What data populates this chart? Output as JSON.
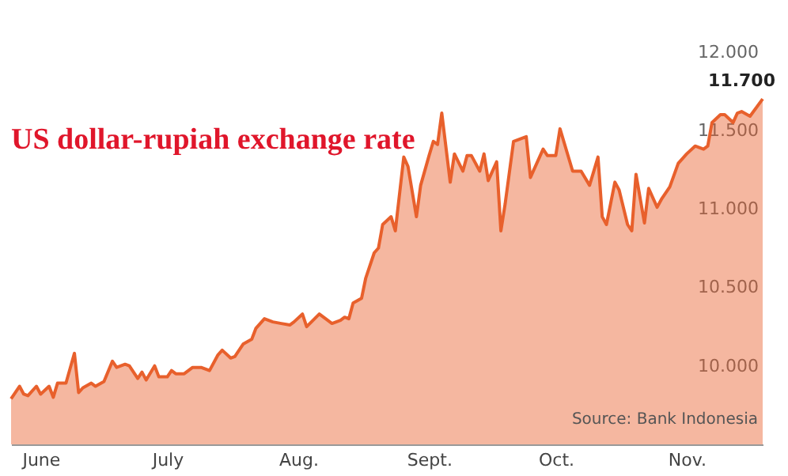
{
  "chart_data": {
    "type": "area",
    "title": "US dollar-rupiah exchange rate",
    "x": [
      "--05-25",
      "--05-27",
      "--05-28",
      "--05-29",
      "--05-31",
      "--06-01",
      "--06-03",
      "--06-04",
      "--06-05",
      "--06-07",
      "--06-09",
      "--06-10",
      "--06-11",
      "--06-13",
      "--06-14",
      "--06-16",
      "--06-18",
      "--06-19",
      "--06-21",
      "--06-22",
      "--06-24",
      "--06-25",
      "--06-26",
      "--06-28",
      "--06-29",
      "--07-01",
      "--07-02",
      "--07-03",
      "--07-05",
      "--07-07",
      "--07-09",
      "--07-11",
      "--07-13",
      "--07-14",
      "--07-16",
      "--07-17",
      "--07-19",
      "--07-21",
      "--07-22",
      "--07-24",
      "--07-26",
      "--07-28",
      "--07-30",
      "--07-31",
      "--08-02",
      "--08-03",
      "--08-06",
      "--08-07",
      "--08-09",
      "--08-11",
      "--08-12",
      "--08-13",
      "--08-14",
      "--08-16",
      "--08-17",
      "--08-19",
      "--08-20",
      "--08-21",
      "--08-23",
      "--08-24",
      "--08-26",
      "--08-27",
      "--08-29",
      "--08-30",
      "--09-01",
      "--09-02",
      "--09-03",
      "--09-04",
      "--09-06",
      "--09-07",
      "--09-09",
      "--09-10",
      "--09-11",
      "--09-13",
      "--09-14",
      "--09-15",
      "--09-17",
      "--09-18",
      "--09-19",
      "--09-21",
      "--09-24",
      "--09-25",
      "--09-28",
      "--09-29",
      "--10-01",
      "--10-02",
      "--10-05",
      "--10-07",
      "--10-09",
      "--10-11",
      "--10-12",
      "--10-13",
      "--10-15",
      "--10-16",
      "--10-18",
      "--10-19",
      "--10-20",
      "--10-22",
      "--10-23",
      "--10-25",
      "--10-26",
      "--10-28",
      "--10-30",
      "--11-01",
      "--11-03",
      "--11-05",
      "--11-06",
      "--11-07",
      "--11-09",
      "--11-10",
      "--11-12",
      "--11-13",
      "--11-14",
      "--11-16",
      "--11-19"
    ],
    "series": [
      {
        "color": "#e8602c",
        "values": [
          9790,
          9870,
          9820,
          9810,
          9870,
          9820,
          9870,
          9800,
          9890,
          9890,
          10080,
          9830,
          9860,
          9890,
          9870,
          9900,
          10030,
          9990,
          10010,
          10000,
          9920,
          9960,
          9910,
          10000,
          9930,
          9930,
          9970,
          9950,
          9950,
          9990,
          9990,
          9970,
          10070,
          10100,
          10050,
          10060,
          10140,
          10170,
          10240,
          10300,
          10280,
          10270,
          10260,
          10280,
          10330,
          10250,
          10330,
          10310,
          10270,
          10290,
          10310,
          10300,
          10400,
          10430,
          10560,
          10720,
          10750,
          10900,
          10950,
          10860,
          11330,
          11270,
          10950,
          11150,
          11340,
          11430,
          11410,
          11610,
          11170,
          11350,
          11240,
          11340,
          11340,
          11240,
          11350,
          11180,
          11300,
          10860,
          11030,
          11430,
          11460,
          11200,
          11380,
          11340,
          11340,
          11510,
          11240,
          11240,
          11150,
          11330,
          10950,
          10900,
          11170,
          11120,
          10900,
          10860,
          11220,
          10910,
          11130,
          11010,
          11060,
          11140,
          11290,
          11350,
          11400,
          11380,
          11400,
          11550,
          11600,
          11600,
          11550,
          11610,
          11620,
          11590,
          11700
        ]
      }
    ],
    "xlim": [
      "--05-25",
      "--11-19"
    ],
    "xticks": [
      {
        "value": "--06-01",
        "label": "June"
      },
      {
        "value": "--07-01",
        "label": "July"
      },
      {
        "value": "--08-01",
        "label": "Aug."
      },
      {
        "value": "--09-01",
        "label": "Sept."
      },
      {
        "value": "--10-01",
        "label": "Oct."
      },
      {
        "value": "--11-01",
        "label": "Nov."
      }
    ],
    "ylim": [
      9500,
      12300
    ],
    "yticks": [
      {
        "value": 10000,
        "label": "10.000"
      },
      {
        "value": 10500,
        "label": "10.500"
      },
      {
        "value": 11000,
        "label": "11.000"
      },
      {
        "value": 11500,
        "label": "11.500"
      },
      {
        "value": 12000,
        "label": "12.000"
      }
    ],
    "annotations": [
      {
        "text": "11.700",
        "x": "--11-19",
        "y": 11700
      },
      "Source: Bank Indonesia"
    ],
    "grid": false
  }
}
